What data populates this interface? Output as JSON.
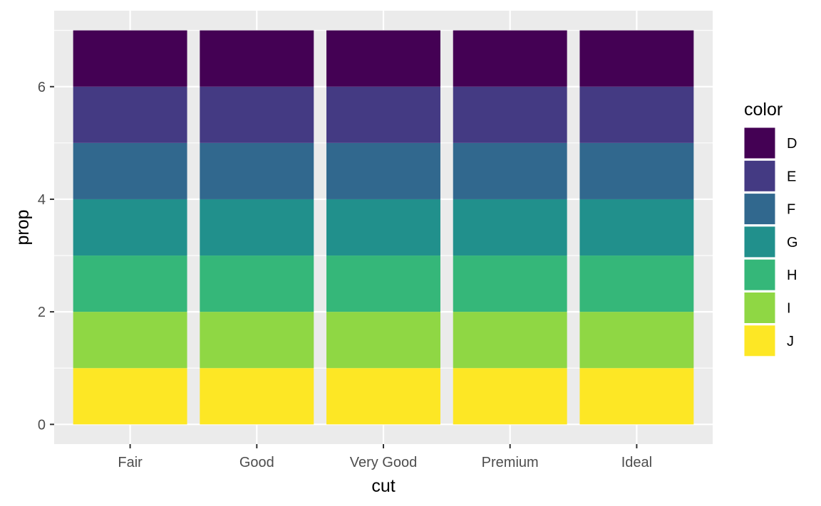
{
  "chart_data": {
    "type": "bar",
    "stacked": true,
    "categories": [
      "Fair",
      "Good",
      "Very Good",
      "Premium",
      "Ideal"
    ],
    "series": [
      {
        "name": "D",
        "values": [
          1,
          1,
          1,
          1,
          1
        ]
      },
      {
        "name": "E",
        "values": [
          1,
          1,
          1,
          1,
          1
        ]
      },
      {
        "name": "F",
        "values": [
          1,
          1,
          1,
          1,
          1
        ]
      },
      {
        "name": "G",
        "values": [
          1,
          1,
          1,
          1,
          1
        ]
      },
      {
        "name": "H",
        "values": [
          1,
          1,
          1,
          1,
          1
        ]
      },
      {
        "name": "I",
        "values": [
          1,
          1,
          1,
          1,
          1
        ]
      },
      {
        "name": "J",
        "values": [
          1,
          1,
          1,
          1,
          1
        ]
      }
    ],
    "colors": {
      "D": "#440154",
      "E": "#443A83",
      "F": "#31688E",
      "G": "#21908C",
      "H": "#35B779",
      "I": "#8FD744",
      "J": "#FDE725"
    },
    "xlabel": "cut",
    "ylabel": "prop",
    "ylim": [
      -0.35,
      7.35
    ],
    "yticks": [
      0,
      2,
      4,
      6
    ],
    "ytick_labels": [
      "0",
      "2",
      "4",
      "6"
    ],
    "grid": true,
    "panel_background": "#EBEBEB",
    "legend": {
      "title": "color",
      "position": "right",
      "entries": [
        "D",
        "E",
        "F",
        "G",
        "H",
        "I",
        "J"
      ]
    }
  }
}
